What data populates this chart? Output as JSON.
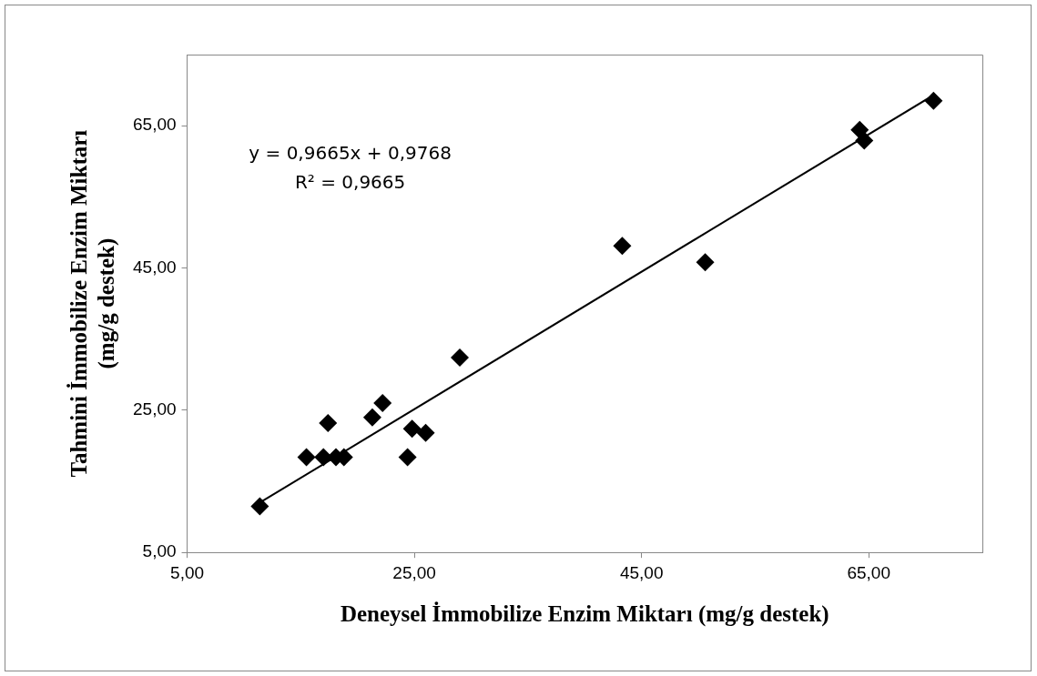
{
  "chart_data": {
    "type": "scatter",
    "xlabel": "Deneysel İmmobilize Enzim Miktarı (mg/g destek)",
    "ylabel": "Tahmini İmmobilize Enzim Miktarı\n(mg/g destek)",
    "x": [
      11.4,
      15.5,
      17.0,
      18.1,
      18.8,
      17.4,
      21.3,
      22.2,
      24.4,
      24.8,
      26.0,
      29.0,
      43.3,
      50.6,
      64.2,
      64.6,
      70.7
    ],
    "series": [
      {
        "type": "scatter",
        "color": "#000000",
        "marker": "diamond",
        "values": [
          11.5,
          18.4,
          18.4,
          18.4,
          18.4,
          23.2,
          24.0,
          26.0,
          18.4,
          22.4,
          21.8,
          32.4,
          48.1,
          45.8,
          64.4,
          62.9,
          68.5
        ]
      },
      {
        "type": "line",
        "color": "#000000",
        "x": [
          11.4,
          70.7
        ],
        "values": [
          12.0,
          69.3
        ],
        "marker": "none",
        "line_style": "solid"
      }
    ],
    "xlim": [
      5,
      75
    ],
    "ylim": [
      5,
      75
    ],
    "xticks": [
      {
        "value": 5,
        "label": "5,00"
      },
      {
        "value": 25,
        "label": "25,00"
      },
      {
        "value": 45,
        "label": "45,00"
      },
      {
        "value": 65,
        "label": "65,00"
      }
    ],
    "yticks": [
      {
        "value": 5,
        "label": "5,00"
      },
      {
        "value": 25,
        "label": "25,00"
      },
      {
        "value": 45,
        "label": "45,00"
      },
      {
        "value": 65,
        "label": "65,00"
      }
    ],
    "annotations": [
      "y = 0,9665x + 0,9768",
      "R² = 0,9665"
    ],
    "grid": false,
    "legend": false
  }
}
